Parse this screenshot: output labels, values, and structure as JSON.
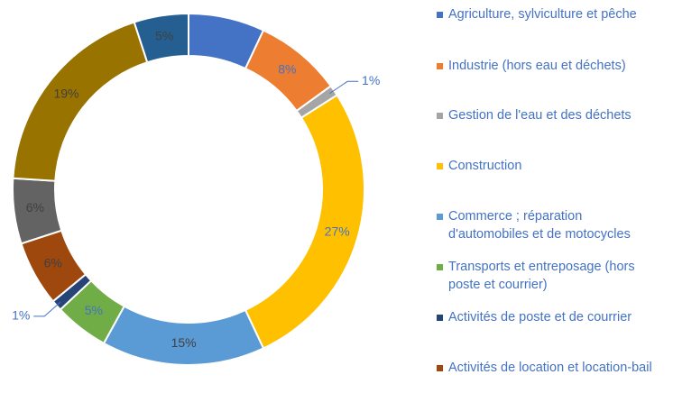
{
  "chart_data": {
    "type": "donut",
    "categories": [
      "Agriculture, sylviculture et pêche",
      "Industrie (hors eau et déchets)",
      "Gestion de l'eau et des déchets",
      "Construction",
      "Commerce ; réparation d'automobiles et de motocycles",
      "Transports et entreposage (hors poste et courrier)",
      "Activités de poste et de courrier",
      "Activités de location et location-bail",
      null,
      null,
      null
    ],
    "values": [
      7,
      8,
      1,
      27,
      15,
      5,
      1,
      6,
      6,
      19,
      5
    ],
    "value_labels": [
      "7%",
      "8%",
      "1%",
      "27%",
      "15%",
      "5%",
      "1%",
      "6%",
      "6%",
      "19%",
      "5%"
    ],
    "colors": [
      "#4472c4",
      "#ed7d31",
      "#a5a5a5",
      "#ffc000",
      "#5b9bd5",
      "#70ad47",
      "#264478",
      "#9e480e",
      "#636363",
      "#997300",
      "#255e91"
    ],
    "legend": "right"
  }
}
